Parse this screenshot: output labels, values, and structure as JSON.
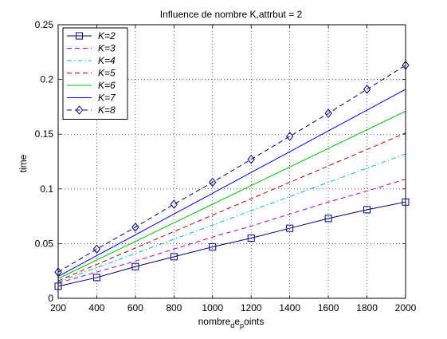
{
  "chart_data": {
    "type": "line",
    "title": "Influence de nombre K,attrbut = 2",
    "xlabel": "nombre_d e_p oints",
    "ylabel": "time",
    "x": [
      200,
      400,
      600,
      800,
      1000,
      1200,
      1400,
      1600,
      1800,
      2000
    ],
    "xlim": [
      200,
      2000
    ],
    "ylim": [
      0,
      0.25
    ],
    "xticks": [
      "200",
      "400",
      "600",
      "800",
      "1000",
      "1200",
      "1400",
      "1600",
      "1800",
      "2000"
    ],
    "yticks": [
      "0",
      "0.05",
      "0.1",
      "0.15",
      "0.2",
      "0.25"
    ],
    "grid": true,
    "legend_position": "top-left",
    "series": [
      {
        "name": "K=2",
        "color": "#00007f",
        "style": "solid",
        "marker": "square",
        "values": [
          0.011,
          0.019,
          0.029,
          0.038,
          0.047,
          0.055,
          0.064,
          0.073,
          0.081,
          0.088
        ]
      },
      {
        "name": "K=3",
        "color": "#bf00bf",
        "style": "dashed",
        "marker": "none",
        "values": [
          0.014,
          0.024,
          0.034,
          0.045,
          0.056,
          0.066,
          0.077,
          0.088,
          0.098,
          0.109
        ]
      },
      {
        "name": "K=4",
        "color": "#00bfbf",
        "style": "dashdot",
        "marker": "none",
        "values": [
          0.015,
          0.028,
          0.041,
          0.054,
          0.067,
          0.08,
          0.093,
          0.106,
          0.119,
          0.132
        ]
      },
      {
        "name": "K=5",
        "color": "#bf0000",
        "style": "dashed",
        "marker": "none",
        "values": [
          0.016,
          0.031,
          0.046,
          0.061,
          0.076,
          0.091,
          0.106,
          0.121,
          0.136,
          0.151
        ]
      },
      {
        "name": "K=6",
        "color": "#00bf00",
        "style": "solid",
        "marker": "none",
        "values": [
          0.018,
          0.035,
          0.052,
          0.069,
          0.086,
          0.103,
          0.12,
          0.137,
          0.154,
          0.171
        ]
      },
      {
        "name": "K=7",
        "color": "#0000ff",
        "style": "solid",
        "marker": "none",
        "values": [
          0.02,
          0.039,
          0.058,
          0.077,
          0.096,
          0.115,
          0.134,
          0.153,
          0.172,
          0.191
        ]
      },
      {
        "name": "K=8",
        "color": "#00007f",
        "style": "dashed",
        "marker": "diamond",
        "values": [
          0.024,
          0.045,
          0.065,
          0.086,
          0.106,
          0.127,
          0.148,
          0.169,
          0.191,
          0.213
        ]
      }
    ]
  }
}
